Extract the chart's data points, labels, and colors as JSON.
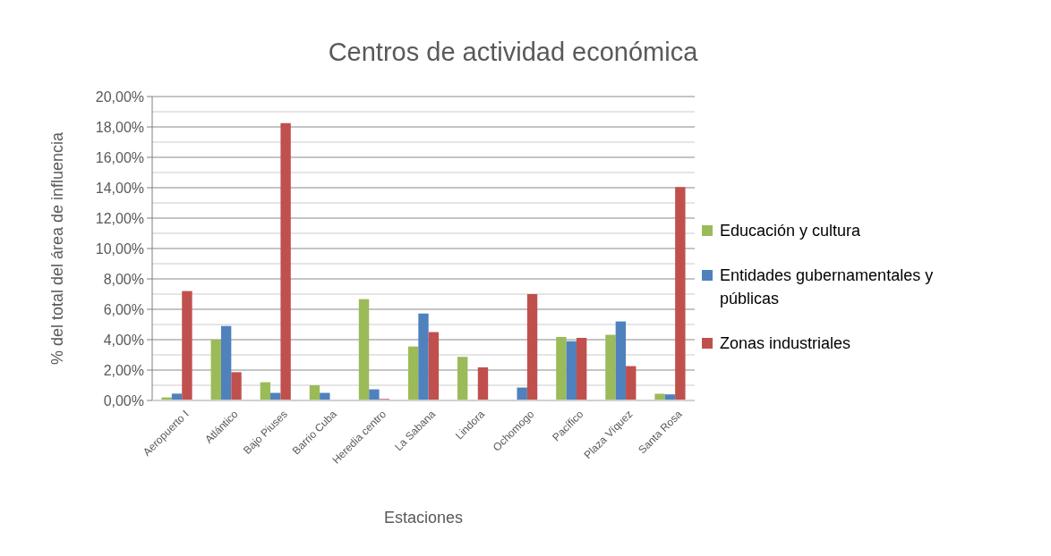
{
  "chart_data": {
    "type": "bar",
    "title": "Centros de actividad económica",
    "xlabel": "Estaciones",
    "ylabel": "% del total del área de influencia",
    "categories": [
      "Aeropuerto I",
      "Atlántico",
      "Bajo Piuses",
      "Barrio Cuba",
      "Heredia centro",
      "La Sabana",
      "Lindora",
      "Ochomogo",
      "Pacífico",
      "Plaza Víquez",
      "Santa Rosa"
    ],
    "series": [
      {
        "name": "Educación y cultura",
        "color": "#9bbb59",
        "values": [
          0.2,
          4.0,
          1.2,
          1.0,
          6.67,
          3.55,
          2.87,
          0,
          4.18,
          4.32,
          0.44
        ]
      },
      {
        "name": "Entidades gubernamentales y públicas",
        "color": "#4f81bd",
        "values": [
          0.45,
          4.9,
          0.5,
          0.5,
          0.73,
          5.72,
          0,
          0.85,
          3.9,
          5.2,
          0.4
        ]
      },
      {
        "name": "Zonas industriales",
        "color": "#c0504d",
        "values": [
          7.2,
          1.86,
          18.25,
          0,
          0.1,
          4.5,
          2.18,
          7.0,
          4.12,
          2.26,
          14.04
        ]
      }
    ],
    "ylim": [
      0,
      20
    ],
    "yticks": [
      {
        "value": 0,
        "label": "0,00%"
      },
      {
        "value": 2,
        "label": "2,00%"
      },
      {
        "value": 4,
        "label": "4,00%"
      },
      {
        "value": 6,
        "label": "6,00%"
      },
      {
        "value": 8,
        "label": "8,00%"
      },
      {
        "value": 10,
        "label": "10,00%"
      },
      {
        "value": 12,
        "label": "12,00%"
      },
      {
        "value": 14,
        "label": "14,00%"
      },
      {
        "value": 16,
        "label": "16,00%"
      },
      {
        "value": 18,
        "label": "18,00%"
      },
      {
        "value": 20,
        "label": "20,00%"
      }
    ],
    "grid": true,
    "legend": "right"
  }
}
